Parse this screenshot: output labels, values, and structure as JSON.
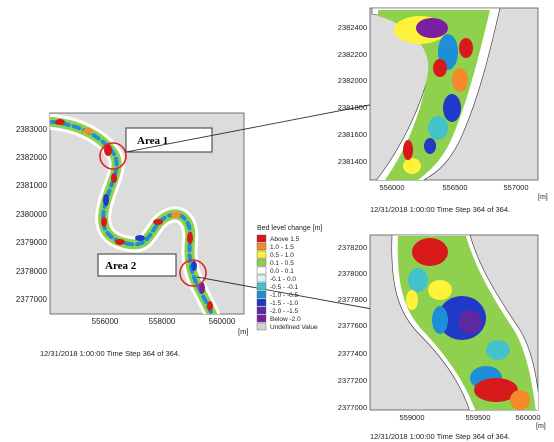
{
  "main_map": {
    "y_ticks": [
      "2383000",
      "2382000",
      "2381000",
      "2380000",
      "2379000",
      "2378000",
      "2377000"
    ],
    "x_ticks": [
      "556000",
      "558000",
      "560000"
    ],
    "unit": "[m]",
    "timestamp": "12/31/2018 1:00:00   Time Step 364 of 364."
  },
  "areas": {
    "area1": "Area 1",
    "area2": "Area 2"
  },
  "zoom1": {
    "y_ticks": [
      "2382400",
      "2382200",
      "2382000",
      "2381800",
      "2381600",
      "2381400"
    ],
    "x_ticks": [
      "556000",
      "556500",
      "557000"
    ],
    "unit": "[m]",
    "timestamp": "12/31/2018 1:00:00   Time Step 364 of 364."
  },
  "zoom2": {
    "y_ticks": [
      "2378200",
      "2378000",
      "2377800",
      "2377600",
      "2377400",
      "2377200",
      "2377000"
    ],
    "x_ticks": [
      "559000",
      "559500",
      "560000"
    ],
    "unit": "[m]",
    "timestamp": "12/31/2018 1:00:00   Time Step 364 of 364."
  },
  "legend": {
    "title": "Bed level change [m]",
    "items": [
      {
        "label": "Above  1.5",
        "color": "#d7191c"
      },
      {
        "label": "1.0 -  1.5",
        "color": "#f58a2a"
      },
      {
        "label": "0.5 -  1.0",
        "color": "#fff23a"
      },
      {
        "label": "0.1 -  0.5",
        "color": "#8fd14f"
      },
      {
        "label": "0.0 -  0.1",
        "color": "#ffffff"
      },
      {
        "label": "-0.1 -  0.0",
        "color": "#d9f2f6"
      },
      {
        "label": "-0.5 - -0.1",
        "color": "#43c3c9"
      },
      {
        "label": "-1.0 - -0.5",
        "color": "#1c8fd6"
      },
      {
        "label": "-1.5 - -1.0",
        "color": "#1f39c8"
      },
      {
        "label": "-2.0 - -1.5",
        "color": "#5b2aa3"
      },
      {
        "label": "Below -2.0",
        "color": "#7a1fa0"
      },
      {
        "label": "Undefined Value",
        "color": "#d3d3d3"
      }
    ]
  }
}
